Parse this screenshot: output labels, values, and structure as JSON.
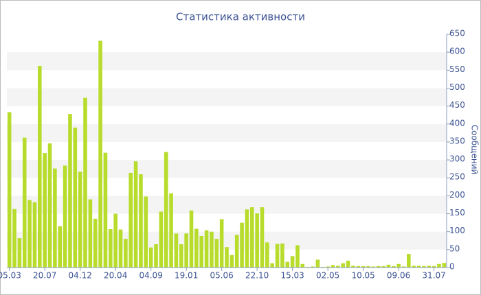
{
  "chart_data": {
    "type": "bar",
    "title": "Статистика активности",
    "y_label": "Сообщений",
    "categories": [
      "05.03",
      null,
      null,
      null,
      null,
      null,
      null,
      "20.07",
      null,
      null,
      null,
      null,
      null,
      null,
      "04.12",
      null,
      null,
      null,
      null,
      null,
      null,
      "20.04",
      null,
      null,
      null,
      null,
      null,
      null,
      "04.09",
      null,
      null,
      null,
      null,
      null,
      null,
      "19.01",
      null,
      null,
      null,
      null,
      null,
      null,
      "05.06",
      null,
      null,
      null,
      null,
      null,
      null,
      "22.10",
      null,
      null,
      null,
      null,
      null,
      null,
      "15.03",
      null,
      null,
      null,
      null,
      null,
      null,
      "02.05",
      null,
      null,
      null,
      null,
      null,
      null,
      "10.05",
      null,
      null,
      null,
      null,
      null,
      null,
      "09.06",
      null,
      null,
      null,
      null,
      null,
      null,
      "31.07",
      null,
      null
    ],
    "values": [
      433,
      163,
      82,
      362,
      188,
      182,
      562,
      319,
      346,
      276,
      115,
      284,
      428,
      390,
      267,
      473,
      190,
      136,
      632,
      320,
      107,
      150,
      106,
      80,
      264,
      296,
      260,
      198,
      56,
      65,
      156,
      322,
      207,
      95,
      65,
      95,
      159,
      108,
      88,
      104,
      100,
      80,
      135,
      57,
      35,
      91,
      125,
      162,
      168,
      151,
      168,
      70,
      12,
      66,
      67,
      16,
      32,
      62,
      10,
      2,
      3,
      22,
      2,
      3,
      7,
      5,
      12,
      19,
      5,
      4,
      4,
      4,
      3,
      4,
      4,
      8,
      4,
      10,
      3,
      38,
      5,
      5,
      4,
      5,
      4,
      10,
      13
    ],
    "color": "#b8dc2c",
    "ylim": [
      0,
      650
    ],
    "yticks": [
      0,
      50,
      100,
      150,
      200,
      250,
      300,
      350,
      400,
      450,
      500,
      550,
      600,
      650
    ],
    "grid": "bands"
  }
}
